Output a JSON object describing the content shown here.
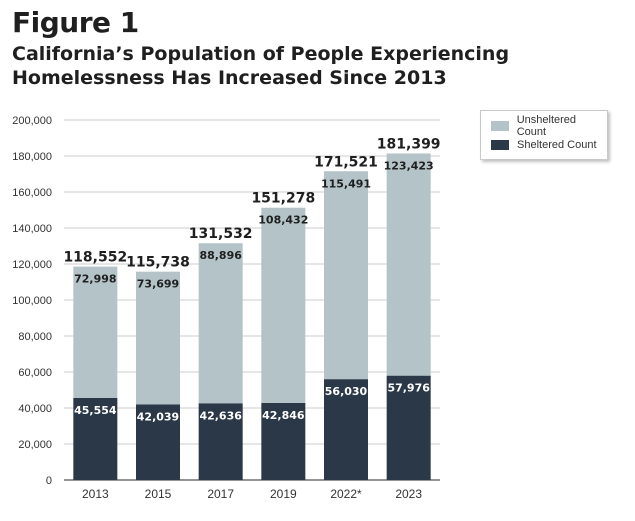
{
  "figure": {
    "label": "Figure 1",
    "title": "California’s Population of People Experiencing Homelessness Has Increased Since 2013"
  },
  "colors": {
    "unsheltered": "#b3c3c8",
    "sheltered": "#2b3847",
    "grid": "#bdbdbd",
    "text": "#1f1f1f"
  },
  "legend": {
    "unsheltered_label": "Unsheltered Count",
    "sheltered_label": "Sheltered Count"
  },
  "chart_data": {
    "type": "bar",
    "stacked": true,
    "categories": [
      "2013",
      "2015",
      "2017",
      "2019",
      "2022*",
      "2023"
    ],
    "series": [
      {
        "name": "Sheltered Count",
        "values": [
          45554,
          42039,
          42636,
          42846,
          56030,
          57976
        ],
        "labels": [
          "45,554",
          "42,039",
          "42,636",
          "42,846",
          "56,030",
          "57,976"
        ]
      },
      {
        "name": "Unsheltered Count",
        "values": [
          72998,
          73699,
          88896,
          108432,
          115491,
          123423
        ],
        "labels": [
          "72,998",
          "73,699",
          "88,896",
          "108,432",
          "115,491",
          "123,423"
        ]
      }
    ],
    "totals": [
      118552,
      115738,
      131532,
      151278,
      171521,
      181399
    ],
    "total_labels": [
      "118,552",
      "115,738",
      "131,532",
      "151,278",
      "171,521",
      "181,399"
    ],
    "ylim": [
      0,
      200000
    ],
    "yticks": [
      0,
      20000,
      40000,
      60000,
      80000,
      100000,
      120000,
      140000,
      160000,
      180000,
      200000
    ],
    "ytick_labels": [
      "0",
      "20,000",
      "40,000",
      "60,000",
      "80,000",
      "100,000",
      "120,000",
      "140,000",
      "160,000",
      "180,000",
      "200,000"
    ],
    "grid": true,
    "legend_position": "top-right"
  }
}
